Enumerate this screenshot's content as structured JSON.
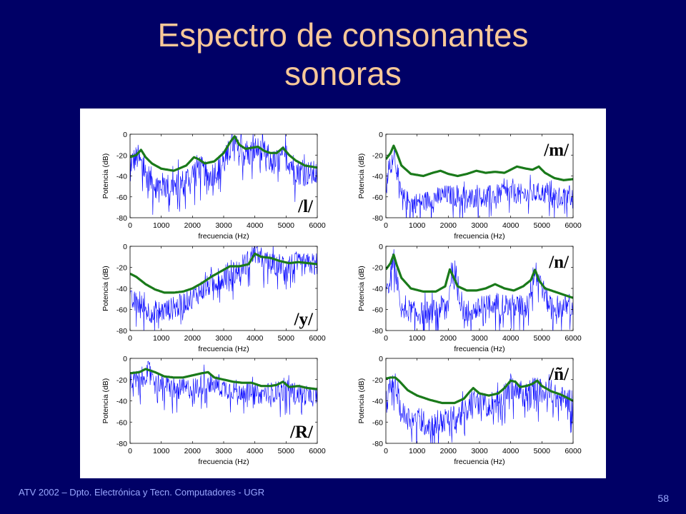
{
  "slide": {
    "title_line1": "Espectro de consonantes",
    "title_line2": "sonoras",
    "footer": "ATV 2002 – Dpto. Electrónica y Tecn. Computadores - UGR",
    "page_number": "58"
  },
  "colors": {
    "background": "#000066",
    "title": "#f8c898",
    "footer": "#9aa8ff",
    "spectrum": "#0000ff",
    "envelope": "#1a7a1a"
  },
  "chart_data": [
    {
      "type": "line",
      "label": "/l/",
      "xlabel": "frecuencia (Hz)",
      "ylabel": "Potencia (dB)",
      "xlim": [
        0,
        6000
      ],
      "ylim": [
        -80,
        0
      ],
      "xticks": [
        "0",
        "1000",
        "2000",
        "3000",
        "4000",
        "5000",
        "6000"
      ],
      "yticks": [
        "0",
        "-20",
        "-40",
        "-60",
        "-80"
      ],
      "series": [
        {
          "kind": "spectrum",
          "noise": 13,
          "x": [
            0,
            250,
            500,
            800,
            1200,
            1600,
            2000,
            2200,
            2500,
            3000,
            3300,
            3500,
            3800,
            4000,
            4300,
            4600,
            5000,
            5400,
            5800,
            6000
          ],
          "values": [
            -28,
            -22,
            -38,
            -48,
            -50,
            -48,
            -38,
            -30,
            -42,
            -28,
            -8,
            -18,
            -20,
            -14,
            -18,
            -28,
            -22,
            -36,
            -38,
            -38
          ]
        },
        {
          "kind": "envelope",
          "x": [
            0,
            200,
            350,
            500,
            700,
            1000,
            1400,
            1800,
            2050,
            2200,
            2400,
            2700,
            3000,
            3200,
            3350,
            3500,
            3700,
            3900,
            4100,
            4300,
            4500,
            4700,
            4900,
            5100,
            5300,
            5600,
            5800,
            6000
          ],
          "values": [
            -22,
            -20,
            -15,
            -22,
            -28,
            -33,
            -35,
            -30,
            -22,
            -24,
            -28,
            -26,
            -18,
            -8,
            -2,
            -10,
            -14,
            -13,
            -12,
            -16,
            -18,
            -18,
            -13,
            -20,
            -25,
            -30,
            -31,
            -32
          ]
        }
      ]
    },
    {
      "type": "line",
      "label": "/m/",
      "xlabel": "frecuencia (Hz)",
      "ylabel": "Potencia (dB)",
      "xlim": [
        0,
        6000
      ],
      "ylim": [
        -80,
        0
      ],
      "xticks": [
        "0",
        "1000",
        "2000",
        "3000",
        "4000",
        "5000",
        "6000"
      ],
      "yticks": [
        "0",
        "-20",
        "-40",
        "-60",
        "-80"
      ],
      "series": [
        {
          "kind": "spectrum",
          "noise": 10,
          "x": [
            0,
            250,
            500,
            800,
            1200,
            1600,
            2000,
            2500,
            3000,
            3500,
            4000,
            4500,
            5000,
            5500,
            6000
          ],
          "values": [
            -50,
            -15,
            -60,
            -66,
            -65,
            -60,
            -58,
            -62,
            -60,
            -58,
            -56,
            -58,
            -56,
            -60,
            -58
          ]
        },
        {
          "kind": "envelope",
          "x": [
            0,
            150,
            250,
            350,
            500,
            800,
            1200,
            1500,
            1750,
            2000,
            2300,
            2600,
            2900,
            3200,
            3500,
            3800,
            4000,
            4200,
            4500,
            4700,
            4900,
            5100,
            5400,
            5700,
            6000
          ],
          "values": [
            -24,
            -18,
            -11,
            -18,
            -30,
            -38,
            -40,
            -37,
            -35,
            -38,
            -40,
            -38,
            -35,
            -37,
            -36,
            -37,
            -34,
            -31,
            -33,
            -34,
            -31,
            -37,
            -42,
            -44,
            -43
          ]
        }
      ]
    },
    {
      "type": "line",
      "label": "/y/",
      "xlabel": "frecuencia (Hz)",
      "ylabel": "Potencia (dB)",
      "xlim": [
        0,
        6000
      ],
      "ylim": [
        -80,
        0
      ],
      "xticks": [
        "0",
        "1000",
        "2000",
        "3000",
        "4000",
        "5000",
        "6000"
      ],
      "yticks": [
        "0",
        "-20",
        "-40",
        "-60",
        "-80"
      ],
      "series": [
        {
          "kind": "spectrum",
          "noise": 11,
          "x": [
            0,
            300,
            600,
            1000,
            1500,
            2000,
            2500,
            3000,
            3400,
            3800,
            4000,
            4300,
            4600,
            5000,
            5500,
            6000
          ],
          "values": [
            -52,
            -55,
            -62,
            -62,
            -58,
            -48,
            -38,
            -28,
            -22,
            -14,
            -6,
            -14,
            -18,
            -16,
            -18,
            -16
          ]
        },
        {
          "kind": "envelope",
          "x": [
            0,
            200,
            500,
            800,
            1100,
            1400,
            1700,
            2000,
            2300,
            2600,
            2900,
            3200,
            3500,
            3800,
            4000,
            4200,
            4500,
            4800,
            5100,
            5400,
            5700,
            6000
          ],
          "values": [
            -26,
            -29,
            -36,
            -41,
            -44,
            -44,
            -43,
            -40,
            -35,
            -29,
            -24,
            -19,
            -19,
            -17,
            -7,
            -10,
            -11,
            -14,
            -16,
            -15,
            -16,
            -17
          ]
        }
      ]
    },
    {
      "type": "line",
      "label": "/n/",
      "xlabel": "frecuencia (Hz)",
      "ylabel": "Potencia (dB)",
      "xlim": [
        0,
        6000
      ],
      "ylim": [
        -80,
        0
      ],
      "xticks": [
        "0",
        "1000",
        "2000",
        "3000",
        "4000",
        "5000",
        "6000"
      ],
      "yticks": [
        "0",
        "-20",
        "-40",
        "-60",
        "-80"
      ],
      "series": [
        {
          "kind": "spectrum",
          "noise": 11,
          "x": [
            0,
            250,
            500,
            1000,
            1500,
            2000,
            2100,
            2500,
            3000,
            3500,
            4000,
            4500,
            4800,
            5200,
            5600,
            6000
          ],
          "values": [
            -48,
            -12,
            -58,
            -64,
            -62,
            -54,
            -22,
            -62,
            -60,
            -54,
            -56,
            -58,
            -22,
            -54,
            -58,
            -56
          ]
        },
        {
          "kind": "envelope",
          "x": [
            0,
            150,
            250,
            350,
            500,
            800,
            1200,
            1600,
            1900,
            2050,
            2150,
            2300,
            2600,
            2900,
            3200,
            3500,
            3800,
            4100,
            4400,
            4650,
            4780,
            4900,
            5100,
            5400,
            5700,
            6000
          ],
          "values": [
            -22,
            -16,
            -8,
            -18,
            -30,
            -40,
            -43,
            -43,
            -38,
            -22,
            -28,
            -38,
            -42,
            -42,
            -40,
            -36,
            -40,
            -42,
            -38,
            -32,
            -22,
            -32,
            -40,
            -43,
            -46,
            -49
          ]
        }
      ]
    },
    {
      "type": "line",
      "label": "/R/",
      "xlabel": "frecuencia (Hz)",
      "ylabel": "Potencia (dB)",
      "xlim": [
        0,
        6000
      ],
      "ylim": [
        -80,
        0
      ],
      "xticks": [
        "0",
        "1000",
        "2000",
        "3000",
        "4000",
        "5000",
        "6000"
      ],
      "yticks": [
        "0",
        "-20",
        "-40",
        "-60",
        "-80"
      ],
      "series": [
        {
          "kind": "spectrum",
          "noise": 10,
          "x": [
            0,
            300,
            600,
            1000,
            1500,
            2000,
            2500,
            3000,
            3500,
            4000,
            4500,
            5000,
            5500,
            6000
          ],
          "values": [
            -22,
            -20,
            -12,
            -24,
            -30,
            -28,
            -22,
            -28,
            -30,
            -34,
            -32,
            -30,
            -34,
            -36
          ]
        },
        {
          "kind": "envelope",
          "x": [
            0,
            300,
            500,
            800,
            1100,
            1400,
            1700,
            2000,
            2300,
            2500,
            2700,
            3000,
            3300,
            3600,
            3900,
            4200,
            4500,
            4700,
            4900,
            5100,
            5400,
            5700,
            6000
          ],
          "values": [
            -14,
            -13,
            -10,
            -13,
            -17,
            -18,
            -18,
            -16,
            -14,
            -13,
            -18,
            -20,
            -22,
            -23,
            -23,
            -26,
            -26,
            -25,
            -22,
            -27,
            -26,
            -28,
            -29
          ]
        }
      ]
    },
    {
      "type": "line",
      "label": "/ñ/",
      "xlabel": "frecuencia (Hz)",
      "ylabel": "Potencia (dB)",
      "xlim": [
        0,
        6000
      ],
      "ylim": [
        -80,
        0
      ],
      "xticks": [
        "0",
        "1000",
        "2000",
        "3000",
        "4000",
        "5000",
        "6000"
      ],
      "yticks": [
        "0",
        "-20",
        "-40",
        "-60",
        "-80"
      ],
      "series": [
        {
          "kind": "spectrum",
          "noise": 12,
          "x": [
            0,
            250,
            500,
            1000,
            1500,
            2000,
            2500,
            2800,
            3200,
            3600,
            4000,
            4400,
            4800,
            5200,
            5600,
            6000
          ],
          "values": [
            -42,
            -18,
            -52,
            -60,
            -62,
            -58,
            -52,
            -40,
            -44,
            -40,
            -26,
            -34,
            -28,
            -34,
            -38,
            -40
          ]
        },
        {
          "kind": "envelope",
          "x": [
            0,
            150,
            300,
            450,
            700,
            1000,
            1400,
            1800,
            2200,
            2500,
            2700,
            2800,
            3000,
            3300,
            3600,
            3800,
            4000,
            4150,
            4300,
            4500,
            4700,
            4850,
            5000,
            5300,
            5600,
            6000
          ],
          "values": [
            -19,
            -18,
            -18,
            -22,
            -30,
            -35,
            -39,
            -42,
            -42,
            -38,
            -31,
            -28,
            -33,
            -35,
            -33,
            -28,
            -21,
            -22,
            -27,
            -26,
            -24,
            -21,
            -26,
            -31,
            -34,
            -40
          ]
        }
      ]
    }
  ]
}
